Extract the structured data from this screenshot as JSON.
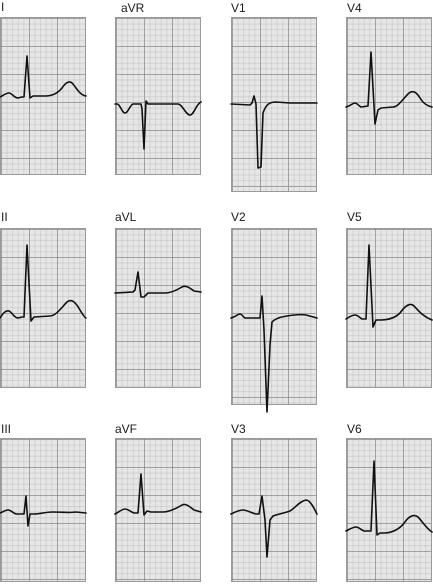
{
  "leads": [
    {
      "id": "I",
      "label": "I"
    },
    {
      "id": "aVR",
      "label": "aVR"
    },
    {
      "id": "V1",
      "label": "V1"
    },
    {
      "id": "V4",
      "label": "V4"
    },
    {
      "id": "II",
      "label": "II"
    },
    {
      "id": "aVL",
      "label": "aVL"
    },
    {
      "id": "V2",
      "label": "V2"
    },
    {
      "id": "V5",
      "label": "V5"
    },
    {
      "id": "III",
      "label": "III"
    },
    {
      "id": "aVF",
      "label": "aVF"
    },
    {
      "id": "V3",
      "label": "V3"
    },
    {
      "id": "V6",
      "label": "V6"
    }
  ],
  "colors": {
    "grid_background": "#e6e6e6",
    "trace": "#111111",
    "label": "#1a1a1a"
  }
}
